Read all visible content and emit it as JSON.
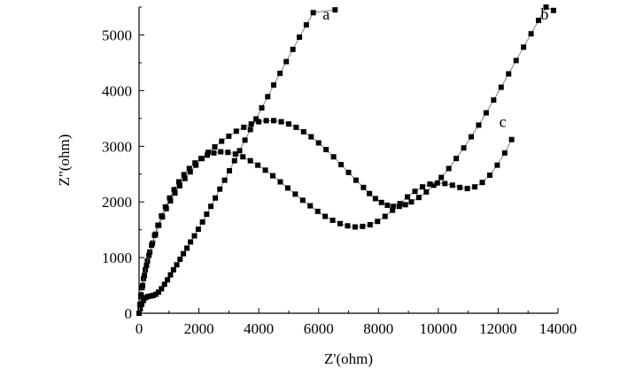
{
  "chart_data": {
    "type": "scatter",
    "title": "",
    "xlabel": "Z'(ohm)",
    "ylabel": "Z\"(ohm)",
    "xlim": [
      0,
      14000
    ],
    "ylim": [
      0,
      5500
    ],
    "x_ticks": [
      "0",
      "2000",
      "4000",
      "6000",
      "8000",
      "10000",
      "12000",
      "14000"
    ],
    "y_ticks": [
      "0",
      "1000",
      "2000",
      "3000",
      "4000",
      "5000"
    ],
    "grid": false,
    "legend": "none",
    "marker": "filled-square",
    "line": "connected",
    "series": [
      {
        "name": "a",
        "x": [
          0,
          40,
          90,
          150,
          220,
          300,
          380,
          470,
          560,
          650,
          750,
          850,
          950,
          1050,
          1150,
          1260,
          1370,
          1480,
          1600,
          1720,
          1850,
          1980,
          2120,
          2260,
          2400,
          2550,
          2700,
          2860,
          3020,
          3190,
          3360,
          3540,
          3720,
          3910,
          4100,
          4300,
          4500,
          4710,
          4920,
          5140,
          5360,
          5590,
          5820,
          6060,
          6300,
          6550
        ],
        "y": [
          0,
          80,
          160,
          230,
          280,
          300,
          310,
          320,
          340,
          380,
          440,
          520,
          600,
          690,
          780,
          870,
          970,
          1070,
          1170,
          1280,
          1390,
          1510,
          1640,
          1780,
          1920,
          2070,
          2230,
          2390,
          2560,
          2740,
          2920,
          3110,
          3300,
          3490,
          3690,
          3890,
          4100,
          4310,
          4520,
          4740,
          4960,
          5180,
          5400,
          5620,
          5840,
          5450
        ]
      },
      {
        "name": "b",
        "x": [
          0,
          30,
          60,
          100,
          150,
          210,
          280,
          360,
          450,
          550,
          660,
          780,
          910,
          1050,
          1200,
          1360,
          1530,
          1710,
          1900,
          2100,
          2310,
          2530,
          2760,
          3000,
          3250,
          3500,
          3750,
          4000,
          4250,
          4500,
          4750,
          5000,
          5250,
          5500,
          5750,
          6000,
          6250,
          6500,
          6750,
          7000,
          7250,
          7500,
          7700,
          7900,
          8100,
          8300,
          8500,
          8700,
          8900,
          9100,
          9350,
          9600,
          9850,
          10100,
          10350,
          10600,
          10850,
          11100,
          11350,
          11600,
          11850,
          12100,
          12350,
          12600,
          12850,
          13100,
          13350,
          13600,
          13850
        ],
        "y": [
          0,
          150,
          300,
          460,
          620,
          780,
          940,
          1100,
          1260,
          1420,
          1580,
          1730,
          1880,
          2020,
          2160,
          2290,
          2420,
          2540,
          2660,
          2780,
          2890,
          2990,
          3090,
          3180,
          3270,
          3340,
          3400,
          3440,
          3460,
          3460,
          3440,
          3400,
          3340,
          3260,
          3170,
          3060,
          2940,
          2810,
          2670,
          2530,
          2390,
          2260,
          2150,
          2060,
          1990,
          1940,
          1920,
          1920,
          1950,
          2000,
          2080,
          2180,
          2300,
          2440,
          2600,
          2780,
          2970,
          3170,
          3380,
          3600,
          3830,
          4060,
          4300,
          4540,
          4780,
          5020,
          5260,
          5500,
          5440
        ]
      },
      {
        "name": "c",
        "x": [
          0,
          30,
          70,
          120,
          180,
          250,
          330,
          420,
          520,
          630,
          750,
          880,
          1020,
          1170,
          1330,
          1500,
          1680,
          1870,
          2070,
          2280,
          2500,
          2730,
          2970,
          3220,
          3470,
          3720,
          3970,
          4220,
          4470,
          4720,
          4970,
          5220,
          5470,
          5720,
          5970,
          6220,
          6470,
          6720,
          6970,
          7220,
          7470,
          7720,
          7970,
          8220,
          8470,
          8720,
          8970,
          9220,
          9470,
          9720,
          9970,
          10220,
          10470,
          10720,
          10970,
          11220,
          11470,
          11720,
          11970,
          12220,
          12450
        ],
        "y": [
          0,
          160,
          330,
          500,
          680,
          860,
          1040,
          1220,
          1400,
          1580,
          1750,
          1910,
          2070,
          2220,
          2360,
          2490,
          2600,
          2700,
          2780,
          2840,
          2880,
          2900,
          2890,
          2860,
          2810,
          2740,
          2660,
          2570,
          2470,
          2360,
          2250,
          2140,
          2030,
          1930,
          1830,
          1740,
          1670,
          1610,
          1570,
          1550,
          1560,
          1590,
          1650,
          1740,
          1850,
          1970,
          2090,
          2190,
          2270,
          2320,
          2340,
          2330,
          2300,
          2260,
          2240,
          2270,
          2350,
          2480,
          2660,
          2880,
          3120
        ]
      }
    ]
  }
}
